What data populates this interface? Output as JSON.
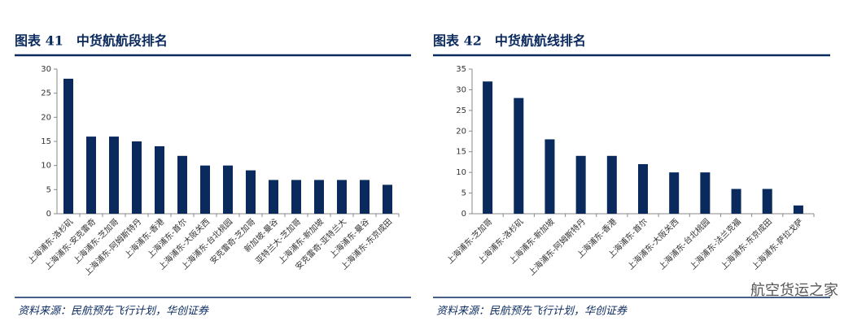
{
  "chart_data": [
    {
      "type": "bar",
      "title": "图表 41　中货航航段排名",
      "source": "资料来源：民航预先飞行计划，华创证券",
      "categories": [
        "上海浦东-洛杉矶",
        "上海浦东-安克雷奇",
        "上海浦东-芝加哥",
        "上海浦东-阿姆斯特丹",
        "上海浦东-香港",
        "上海浦东-首尔",
        "上海浦东-大阪关西",
        "上海浦东-台北桃园",
        "安克雷奇-芝加哥",
        "新加坡-曼谷",
        "亚特兰大-芝加哥",
        "上海浦东-新加坡",
        "安克雷奇-亚特兰大",
        "上海浦东-曼谷",
        "上海浦东-东京成田"
      ],
      "values": [
        28,
        16,
        16,
        15,
        14,
        12,
        10,
        10,
        9,
        7,
        7,
        7,
        7,
        7,
        6
      ],
      "color": "#0a2a5e",
      "ylim": [
        0,
        30
      ],
      "yticks": [
        0,
        5,
        10,
        15,
        20,
        25,
        30
      ]
    },
    {
      "type": "bar",
      "title": "图表 42　中货航航线排名",
      "source": "资料来源：民航预先飞行计划，华创证券",
      "categories": [
        "上海浦东-芝加哥",
        "上海浦东-洛杉矶",
        "上海浦东-新加坡",
        "上海浦东-阿姆斯特丹",
        "上海浦东-香港",
        "上海浦东-首尔",
        "上海浦东-大阪关西",
        "上海浦东-台北桃园",
        "上海浦东-法兰克福",
        "上海浦东-东京成田",
        "上海浦东-萨拉戈萨"
      ],
      "values": [
        32,
        28,
        18,
        14,
        14,
        12,
        10,
        10,
        6,
        6,
        2
      ],
      "color": "#0a2a5e",
      "ylim": [
        0,
        35
      ],
      "yticks": [
        0,
        5,
        10,
        15,
        20,
        25,
        30,
        35
      ]
    }
  ],
  "watermark": "航空货运之家"
}
